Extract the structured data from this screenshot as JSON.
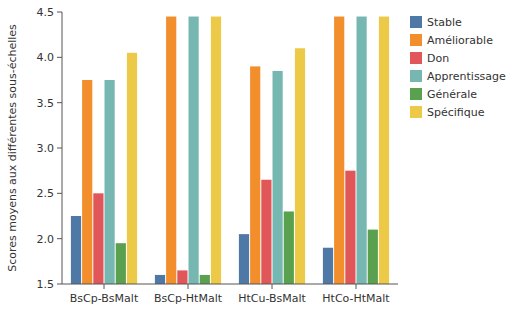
{
  "chart_data": {
    "type": "bar",
    "y_label": "Scores moyens aux différentes sous-échelles",
    "categories": [
      "BsCp-BsMalt",
      "BsCp-HtMalt",
      "HtCu-BsMalt",
      "HtCo-HtMalt"
    ],
    "series": [
      {
        "name": "Stable",
        "color": "#4e79a7",
        "values": [
          2.25,
          1.6,
          2.05,
          1.9
        ]
      },
      {
        "name": "Améliorable",
        "color": "#f28e2b",
        "values": [
          3.75,
          4.45,
          3.9,
          4.45
        ]
      },
      {
        "name": "Don",
        "color": "#e15759",
        "values": [
          2.5,
          1.65,
          2.65,
          2.75
        ]
      },
      {
        "name": "Apprentissage",
        "color": "#76b7b2",
        "values": [
          3.75,
          4.45,
          3.85,
          4.45
        ]
      },
      {
        "name": "Générale",
        "color": "#59a14f",
        "values": [
          1.95,
          1.6,
          2.3,
          2.1
        ]
      },
      {
        "name": "Spécifique",
        "color": "#edc948",
        "values": [
          4.05,
          4.45,
          4.1,
          4.45
        ]
      }
    ],
    "ylim": [
      1.5,
      4.5
    ],
    "yticks": [
      1.5,
      {
        "value": 2.0,
        "label": "2.0"
      },
      2.5,
      {
        "value": 3.0,
        "label": "3.0"
      },
      3.5,
      {
        "value": 4.0,
        "label": "4.0"
      },
      4.5
    ],
    "grid": false,
    "legend": "right"
  }
}
